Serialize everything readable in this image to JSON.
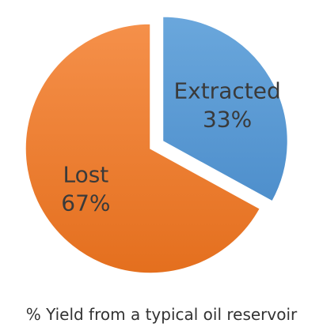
{
  "chart_data": {
    "type": "pie",
    "title": "",
    "caption": "% Yield from a typical oil reservoir",
    "slices": [
      {
        "label": "Extracted",
        "value": 33,
        "value_label": "33%",
        "color": "#5b9bd5",
        "exploded": true
      },
      {
        "label": "Lost",
        "value": 67,
        "value_label": "67%",
        "color": "#ed7d31",
        "exploded": false
      }
    ],
    "start_angle_deg": 0,
    "direction": "clockwise",
    "legend": "none"
  }
}
